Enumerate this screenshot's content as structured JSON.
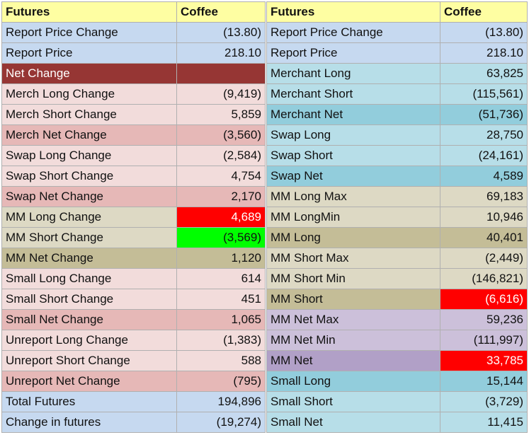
{
  "colors": {
    "negative_text": "#ff0000",
    "header": "#fefea2",
    "price_rows": "#c6d9f0",
    "net_change_header": "#963634",
    "change_rows": "#f2dcdb",
    "net_change_rows": "#e6b8b7",
    "mm_rows": "#ddd9c4",
    "mm_total": "#c4bd97",
    "merchant_swap_rows": "#b7dee8",
    "merchant_swap_net": "#92cddc",
    "mm_net_rows": "#ccc0da",
    "mm_net_total": "#b1a0c7",
    "highlight_red": "#ff0000",
    "highlight_green": "#00ff00"
  },
  "left_table": {
    "header": {
      "label": "Futures",
      "value": "Coffee"
    },
    "rows": [
      {
        "label": "Report Price Change",
        "value": "(13.80)"
      },
      {
        "label": "Report Price",
        "value": "218.10"
      },
      {
        "label": "Net Change",
        "value": ""
      },
      {
        "label": "Merch Long Change",
        "value": "(9,419)"
      },
      {
        "label": "Merch Short Change",
        "value": "5,859"
      },
      {
        "label": "Merch Net Change",
        "value": "(3,560)"
      },
      {
        "label": "Swap Long Change",
        "value": "(2,584)"
      },
      {
        "label": "Swap Short Change",
        "value": "4,754"
      },
      {
        "label": "Swap Net Change",
        "value": "2,170"
      },
      {
        "label": "MM Long Change",
        "value": "4,689"
      },
      {
        "label": "MM Short Change",
        "value": "(3,569)"
      },
      {
        "label": "MM Net Change",
        "value": "1,120"
      },
      {
        "label": "Small Long Change",
        "value": "614"
      },
      {
        "label": "Small Short Change",
        "value": "451"
      },
      {
        "label": "Small Net Change",
        "value": "1,065"
      },
      {
        "label": "Unreport Long Change",
        "value": "(1,383)"
      },
      {
        "label": "Unreport Short Change",
        "value": "588"
      },
      {
        "label": "Unreport Net Change",
        "value": "(795)"
      },
      {
        "label": "Total Futures",
        "value": "194,896"
      },
      {
        "label": "Change in futures",
        "value": "(19,274)"
      }
    ]
  },
  "right_table": {
    "header": {
      "label": "Futures",
      "value": "Coffee"
    },
    "rows": [
      {
        "label": "Report Price Change",
        "value": "(13.80)"
      },
      {
        "label": "Report Price",
        "value": "218.10"
      },
      {
        "label": "Merchant Long",
        "value": "63,825"
      },
      {
        "label": "Merchant Short",
        "value": "(115,561)"
      },
      {
        "label": "Merchant Net",
        "value": "(51,736)"
      },
      {
        "label": "Swap Long",
        "value": "28,750"
      },
      {
        "label": "Swap Short",
        "value": "(24,161)"
      },
      {
        "label": "Swap Net",
        "value": "4,589"
      },
      {
        "label": "MM Long Max",
        "value": "69,183"
      },
      {
        "label": "MM LongMin",
        "value": "10,946"
      },
      {
        "label": "MM Long",
        "value": "40,401"
      },
      {
        "label": "MM Short Max",
        "value": "(2,449)"
      },
      {
        "label": "MM Short Min",
        "value": "(146,821)"
      },
      {
        "label": "MM Short",
        "value": "(6,616)"
      },
      {
        "label": "MM Net Max",
        "value": "59,236"
      },
      {
        "label": "MM Net Min",
        "value": "(111,997)"
      },
      {
        "label": "MM Net",
        "value": "33,785"
      },
      {
        "label": "Small Long",
        "value": "15,144"
      },
      {
        "label": "Small Short",
        "value": "(3,729)"
      },
      {
        "label": "Small Net",
        "value": "11,415"
      }
    ]
  }
}
